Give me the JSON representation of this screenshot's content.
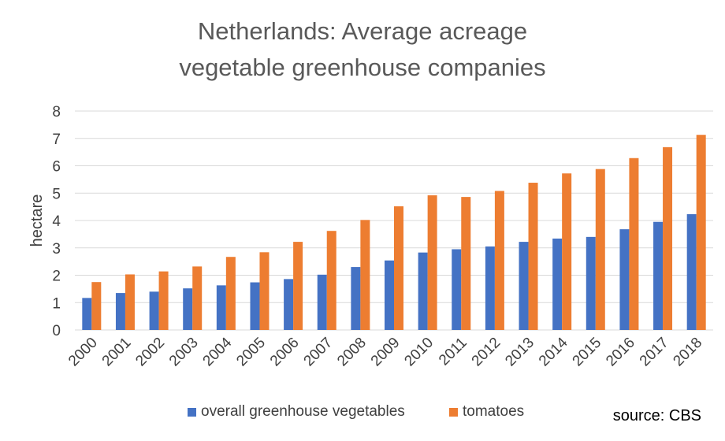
{
  "chart_data": {
    "type": "bar",
    "title": [
      "Netherlands: Average acreage",
      "vegetable greenhouse companies"
    ],
    "xlabel": "",
    "ylabel": "hectare",
    "ylim": [
      0,
      8
    ],
    "yticks": [
      "0",
      "1",
      "2",
      "3",
      "4",
      "5",
      "6",
      "7",
      "8"
    ],
    "grid": true,
    "legend_position": "bottom",
    "categories": [
      "2000",
      "2001",
      "2002",
      "2003",
      "2004",
      "2005",
      "2006",
      "2007",
      "2008",
      "2009",
      "2010",
      "2011",
      "2012",
      "2013",
      "2014",
      "2015",
      "2016",
      "2017",
      "2018"
    ],
    "series": [
      {
        "name": "overall greenhouse vegetables",
        "color": "#4472c4",
        "values": [
          1.17,
          1.35,
          1.4,
          1.52,
          1.63,
          1.74,
          1.86,
          2.02,
          2.3,
          2.54,
          2.83,
          2.95,
          3.05,
          3.22,
          3.34,
          3.4,
          3.68,
          3.95,
          4.23
        ]
      },
      {
        "name": "tomatoes",
        "color": "#ed7d31",
        "values": [
          1.75,
          2.03,
          2.14,
          2.32,
          2.67,
          2.84,
          3.22,
          3.62,
          4.02,
          4.52,
          4.92,
          4.86,
          5.08,
          5.38,
          5.72,
          5.88,
          6.28,
          6.68,
          7.13
        ]
      }
    ],
    "source": "source: CBS"
  }
}
